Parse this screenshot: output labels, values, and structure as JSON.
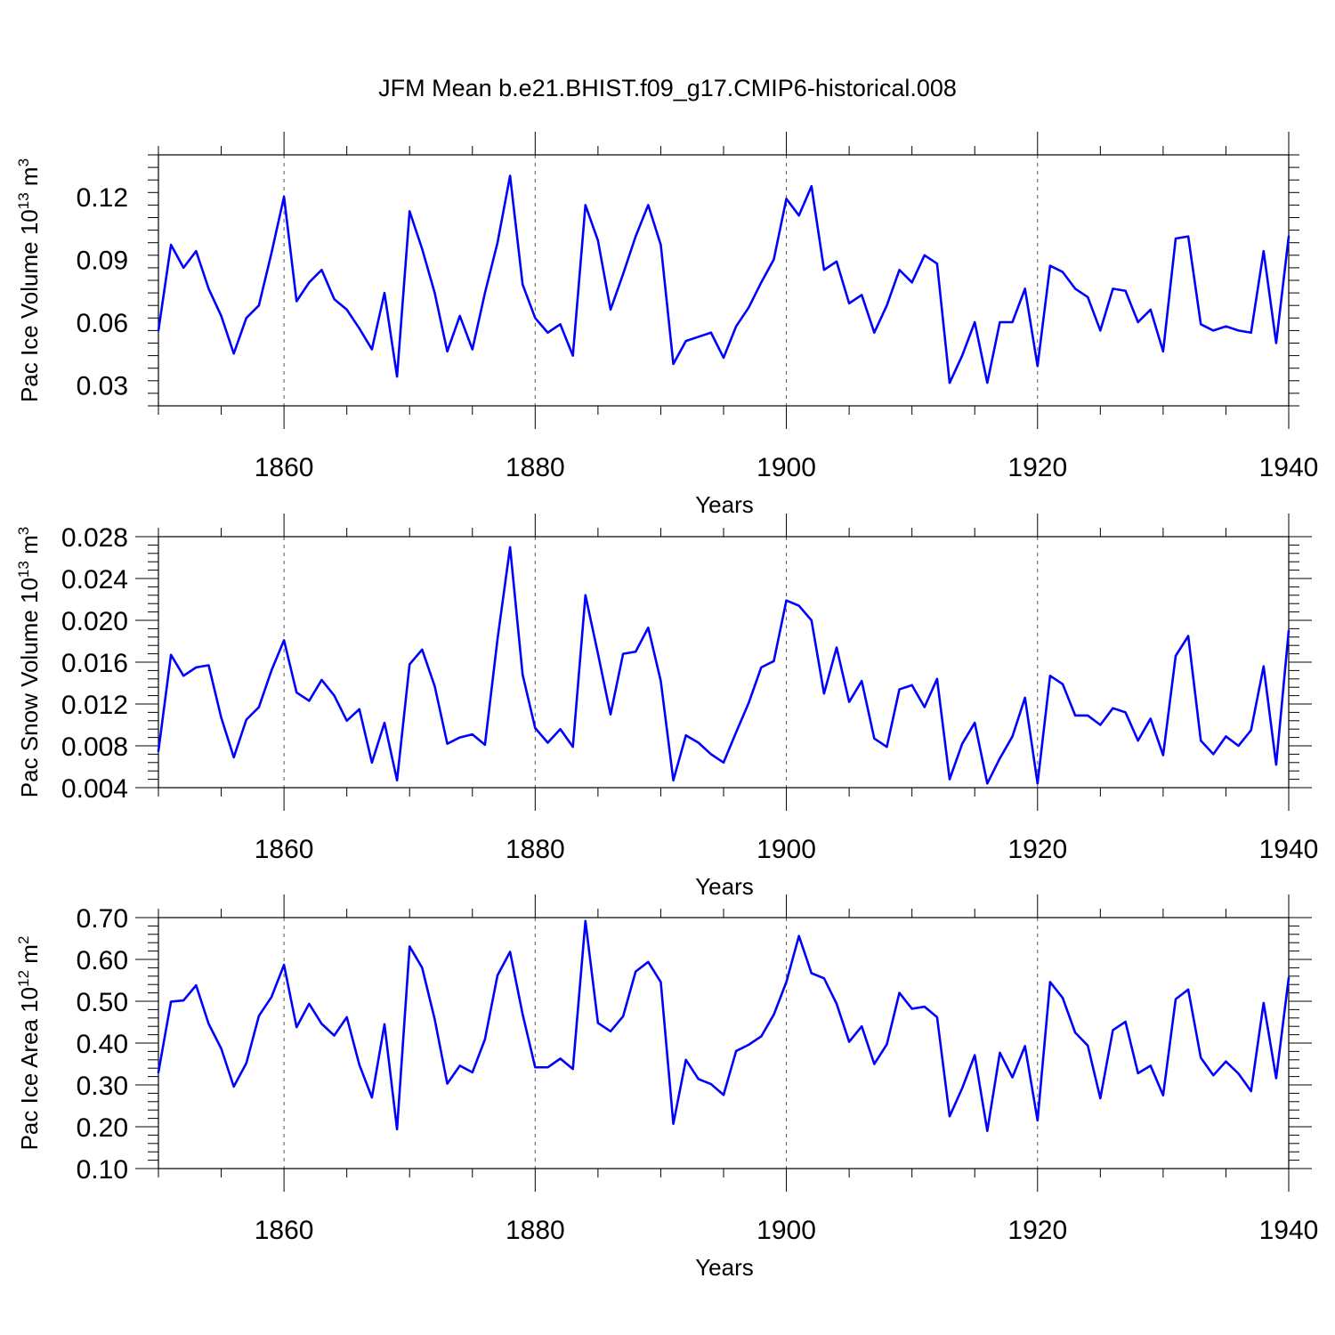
{
  "title": "JFM Mean b.e21.BHIST.f09_g17.CMIP6-historical.008",
  "colors": {
    "line": "#0000ff",
    "axes": "#000000",
    "vgrid": "#555555"
  },
  "chart_data": [
    {
      "type": "line",
      "xlabel": "Years",
      "ylabel_main": "Pac Ice Volume 10",
      "ylabel_exp": "13",
      "ylabel_unit": " m",
      "ylabel_unit_exp": "3",
      "xlim": [
        1850,
        1940
      ],
      "ylim": [
        0.02,
        0.14
      ],
      "yticks": [
        0.03,
        0.06,
        0.09,
        0.12
      ],
      "yticklabels": [
        "0.03",
        "0.06",
        "0.09",
        "0.12"
      ],
      "xticks": [
        1860,
        1880,
        1900,
        1920,
        1940
      ],
      "xticklabels": [
        "1860",
        "1880",
        "1900",
        "1920",
        "1940"
      ],
      "vgrid": [
        1860,
        1880,
        1900,
        1920
      ],
      "x_start": 1850,
      "values": [
        0.056,
        0.097,
        0.086,
        0.094,
        0.076,
        0.063,
        0.045,
        0.062,
        0.068,
        0.093,
        0.12,
        0.07,
        0.079,
        0.085,
        0.071,
        0.066,
        0.057,
        0.047,
        0.074,
        0.034,
        0.113,
        0.095,
        0.074,
        0.046,
        0.063,
        0.047,
        0.074,
        0.098,
        0.13,
        0.078,
        0.062,
        0.055,
        0.059,
        0.044,
        0.116,
        0.099,
        0.066,
        0.083,
        0.101,
        0.116,
        0.097,
        0.04,
        0.051,
        0.053,
        0.055,
        0.043,
        0.058,
        0.067,
        0.079,
        0.09,
        0.119,
        0.111,
        0.125,
        0.085,
        0.089,
        0.069,
        0.073,
        0.055,
        0.068,
        0.085,
        0.079,
        0.092,
        0.088,
        0.031,
        0.044,
        0.06,
        0.031,
        0.06,
        0.06,
        0.076,
        0.039,
        0.087,
        0.084,
        0.076,
        0.072,
        0.056,
        0.076,
        0.075,
        0.06,
        0.066,
        0.046,
        0.1,
        0.101,
        0.059,
        0.056,
        0.058,
        0.056,
        0.055,
        0.094,
        0.05,
        0.101
      ]
    },
    {
      "type": "line",
      "xlabel": "Years",
      "ylabel_main": "Pac Snow Volume 10",
      "ylabel_exp": "13",
      "ylabel_unit": " m",
      "ylabel_unit_exp": "3",
      "xlim": [
        1850,
        1940
      ],
      "ylim": [
        0.004,
        0.028
      ],
      "yticks": [
        0.004,
        0.008,
        0.012,
        0.016,
        0.02,
        0.024,
        0.028
      ],
      "yticklabels": [
        "0.004",
        "0.008",
        "0.012",
        "0.016",
        "0.020",
        "0.024",
        "0.028"
      ],
      "xticks": [
        1860,
        1880,
        1900,
        1920,
        1940
      ],
      "xticklabels": [
        "1860",
        "1880",
        "1900",
        "1920",
        "1940"
      ],
      "vgrid": [
        1860,
        1880,
        1900,
        1920
      ],
      "x_start": 1850,
      "values": [
        0.0075,
        0.0167,
        0.0147,
        0.0155,
        0.0157,
        0.0107,
        0.0069,
        0.0105,
        0.0117,
        0.0152,
        0.0181,
        0.0131,
        0.0123,
        0.0143,
        0.0128,
        0.0104,
        0.0115,
        0.0064,
        0.0102,
        0.0047,
        0.0158,
        0.0172,
        0.0137,
        0.0082,
        0.0088,
        0.0091,
        0.0081,
        0.0182,
        0.027,
        0.0148,
        0.0097,
        0.0083,
        0.0096,
        0.0079,
        0.0224,
        0.0168,
        0.011,
        0.0168,
        0.017,
        0.0193,
        0.0142,
        0.0047,
        0.009,
        0.0083,
        0.0072,
        0.0064,
        0.0093,
        0.0121,
        0.0155,
        0.0161,
        0.0219,
        0.0214,
        0.02,
        0.013,
        0.0174,
        0.0122,
        0.0142,
        0.0087,
        0.0079,
        0.0134,
        0.0138,
        0.0117,
        0.0144,
        0.0048,
        0.0082,
        0.0102,
        0.0044,
        0.0068,
        0.0089,
        0.0126,
        0.0044,
        0.0147,
        0.0139,
        0.0109,
        0.0109,
        0.01,
        0.0116,
        0.0112,
        0.0085,
        0.0106,
        0.0071,
        0.0166,
        0.0185,
        0.0085,
        0.0072,
        0.0089,
        0.008,
        0.0095,
        0.0156,
        0.0062,
        0.019
      ]
    },
    {
      "type": "line",
      "xlabel": "Years",
      "ylabel_main": "Pac Ice Area 10",
      "ylabel_exp": "12",
      "ylabel_unit": " m",
      "ylabel_unit_exp": "2",
      "xlim": [
        1850,
        1940
      ],
      "ylim": [
        0.1,
        0.7
      ],
      "yticks": [
        0.1,
        0.2,
        0.3,
        0.4,
        0.5,
        0.6,
        0.7
      ],
      "yticklabels": [
        "0.10",
        "0.20",
        "0.30",
        "0.40",
        "0.50",
        "0.60",
        "0.70"
      ],
      "xticks": [
        1860,
        1880,
        1900,
        1920,
        1940
      ],
      "xticklabels": [
        "1860",
        "1880",
        "1900",
        "1920",
        "1940"
      ],
      "vgrid": [
        1860,
        1880,
        1900,
        1920
      ],
      "x_start": 1850,
      "values": [
        0.33,
        0.499,
        0.502,
        0.538,
        0.446,
        0.387,
        0.296,
        0.352,
        0.465,
        0.51,
        0.587,
        0.438,
        0.494,
        0.446,
        0.418,
        0.462,
        0.348,
        0.27,
        0.445,
        0.194,
        0.631,
        0.58,
        0.457,
        0.303,
        0.346,
        0.33,
        0.409,
        0.562,
        0.618,
        0.469,
        0.342,
        0.342,
        0.363,
        0.338,
        0.692,
        0.448,
        0.428,
        0.464,
        0.571,
        0.594,
        0.546,
        0.207,
        0.36,
        0.314,
        0.302,
        0.276,
        0.381,
        0.396,
        0.416,
        0.468,
        0.546,
        0.656,
        0.567,
        0.555,
        0.494,
        0.403,
        0.44,
        0.35,
        0.397,
        0.52,
        0.482,
        0.487,
        0.462,
        0.225,
        0.292,
        0.371,
        0.19,
        0.377,
        0.318,
        0.393,
        0.215,
        0.546,
        0.508,
        0.425,
        0.394,
        0.268,
        0.431,
        0.451,
        0.328,
        0.346,
        0.275,
        0.505,
        0.528,
        0.365,
        0.323,
        0.356,
        0.327,
        0.285,
        0.496,
        0.316,
        0.556
      ]
    }
  ]
}
